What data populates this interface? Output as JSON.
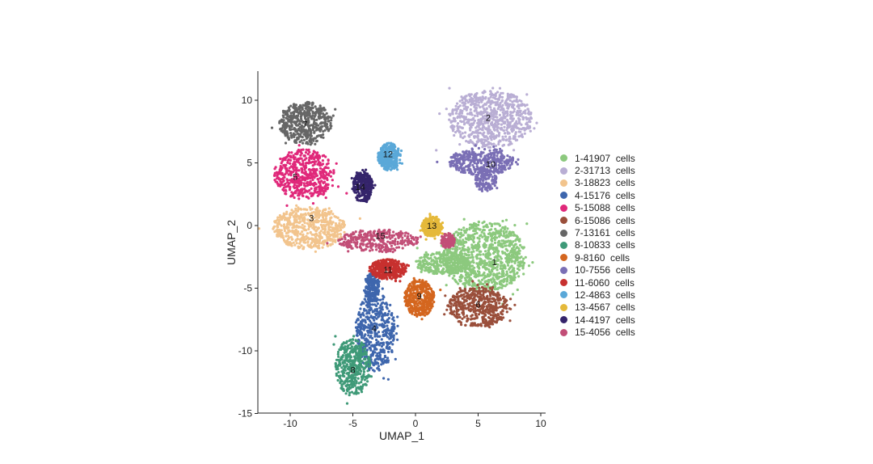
{
  "chart_data": {
    "type": "scatter",
    "xlabel": "UMAP_1",
    "ylabel": "UMAP_2",
    "xlim": [
      -12.6,
      10.4
    ],
    "ylim": [
      -15,
      12.3
    ],
    "xticks": [
      -10,
      -5,
      0,
      5,
      10
    ],
    "yticks": [
      -15,
      -10,
      -5,
      0,
      5,
      10
    ],
    "grid": false,
    "legend_position": "right",
    "clusters": [
      {
        "id": "1",
        "legend": "1-41907  cells",
        "color": "#8cc97e",
        "n": 41907,
        "label_at": [
          6.3,
          -2.9
        ],
        "regions": [
          [
            5.5,
            -2.5,
            3.3,
            2.8
          ],
          [
            2.2,
            -3,
            2.2,
            0.9
          ]
        ]
      },
      {
        "id": "2",
        "legend": "2-31713  cells",
        "color": "#b9aed4",
        "n": 31713,
        "label_at": [
          5.8,
          8.6
        ],
        "regions": [
          [
            6,
            8.5,
            3.3,
            2.3
          ]
        ]
      },
      {
        "id": "3",
        "legend": "3-18823  cells",
        "color": "#f2c48d",
        "n": 18823,
        "label_at": [
          -8.3,
          0.6
        ],
        "regions": [
          [
            -8.5,
            -0.2,
            2.9,
            1.7
          ]
        ]
      },
      {
        "id": "4",
        "legend": "4-15176  cells",
        "color": "#3e66ad",
        "n": 15176,
        "label_at": [
          -3.3,
          -8.2
        ],
        "regions": [
          [
            -3.2,
            -8.5,
            1.6,
            3.2
          ],
          [
            -3.5,
            -5,
            0.6,
            1.2
          ]
        ]
      },
      {
        "id": "5",
        "legend": "5-15088  cells",
        "color": "#e0287a",
        "n": 15088,
        "label_at": [
          -9.6,
          3.9
        ],
        "regions": [
          [
            -8.9,
            4.1,
            2.4,
            2
          ]
        ]
      },
      {
        "id": "6",
        "legend": "6-15086  cells",
        "color": "#9a4f3b",
        "n": 15086,
        "label_at": [
          5,
          -6.3
        ],
        "regions": [
          [
            5,
            -6.5,
            2.4,
            1.6
          ]
        ]
      },
      {
        "id": "7",
        "legend": "7-13161  cells",
        "color": "#666666",
        "n": 13161,
        "label_at": [
          -8.8,
          8.1
        ],
        "regions": [
          [
            -8.8,
            8.2,
            2.1,
            1.7
          ]
        ]
      },
      {
        "id": "8",
        "legend": "8-10833  cells",
        "color": "#3f9a78",
        "n": 10833,
        "label_at": [
          -5,
          -11.5
        ],
        "regions": [
          [
            -5,
            -11.3,
            1.4,
            2.3
          ]
        ]
      },
      {
        "id": "9",
        "legend": "9-8160  cells",
        "color": "#d4661f",
        "n": 8160,
        "label_at": [
          0.3,
          -5.6
        ],
        "regions": [
          [
            0.3,
            -5.8,
            1.2,
            1.5
          ]
        ]
      },
      {
        "id": "10",
        "legend": "10-7556  cells",
        "color": "#7a6fb5",
        "n": 7556,
        "label_at": [
          6,
          4.9
        ],
        "regions": [
          [
            5.3,
            5.1,
            2.6,
            1.1
          ],
          [
            5.6,
            3.6,
            0.9,
            0.9
          ]
        ]
      },
      {
        "id": "11",
        "legend": "11-6060  cells",
        "color": "#c7302f",
        "n": 6060,
        "label_at": [
          -2.2,
          -3.5
        ],
        "regions": [
          [
            -2.2,
            -3.5,
            1.5,
            0.8
          ]
        ]
      },
      {
        "id": "12",
        "legend": "12-4863  cells",
        "color": "#5aa8d8",
        "n": 4863,
        "label_at": [
          -2.2,
          5.7
        ],
        "regions": [
          [
            -2.1,
            5.5,
            0.9,
            1.1
          ]
        ]
      },
      {
        "id": "13",
        "legend": "13-4567  cells",
        "color": "#e5b93a",
        "n": 4567,
        "label_at": [
          1.3,
          0
        ],
        "regions": [
          [
            1.3,
            -0.1,
            0.8,
            0.8
          ]
        ]
      },
      {
        "id": "14",
        "legend": "14-4197  cells",
        "color": "#35246b",
        "n": 4197,
        "label_at": [
          -4.4,
          3.1
        ],
        "regions": [
          [
            -4.2,
            3.1,
            0.8,
            1.2
          ]
        ]
      },
      {
        "id": "15",
        "legend": "15-4056  cells",
        "color": "#c24e77",
        "n": 4056,
        "label_at": [
          -2.8,
          -0.8
        ],
        "regions": [
          [
            -3,
            -1.2,
            3.2,
            0.9
          ],
          [
            2.6,
            -1.2,
            0.6,
            0.6
          ]
        ]
      }
    ]
  }
}
